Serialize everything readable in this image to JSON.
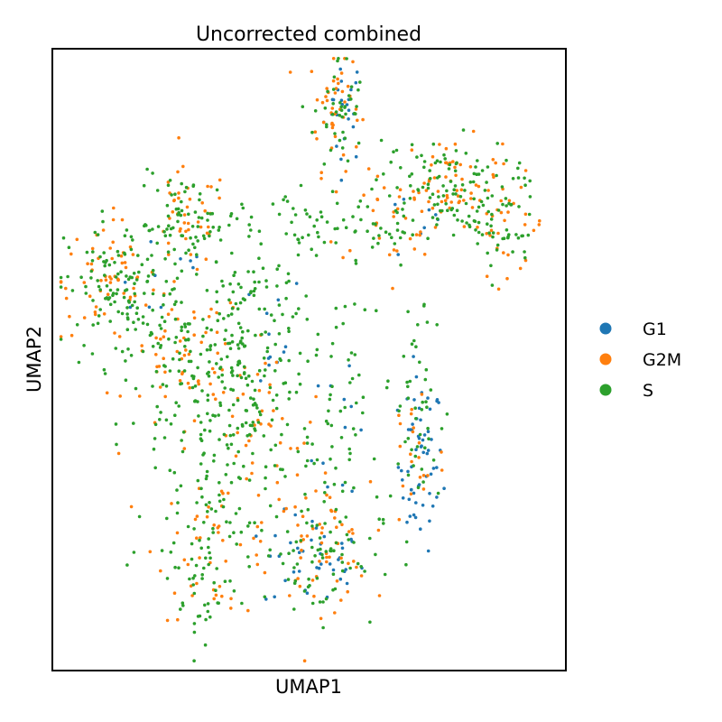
{
  "chart_data": {
    "type": "scatter",
    "title": "Uncorrected combined",
    "xlabel": "UMAP1",
    "ylabel": "UMAP2",
    "xlim": [
      0,
      100
    ],
    "ylim": [
      0,
      100
    ],
    "grid": false,
    "legend_position": "right",
    "series": [
      {
        "name": "G1",
        "color": "#1f77b4",
        "clusters": [
          {
            "cx": 57,
            "cy": 91,
            "sx": 2.0,
            "sy": 4.5,
            "n": 25
          },
          {
            "cx": 72,
            "cy": 33,
            "sx": 2.2,
            "sy": 7.0,
            "n": 60
          },
          {
            "cx": 51,
            "cy": 17,
            "sx": 5.0,
            "sy": 4.0,
            "n": 40
          },
          {
            "cx": 40,
            "cy": 55,
            "sx": 5.0,
            "sy": 5.0,
            "n": 12
          },
          {
            "cx": 20,
            "cy": 64,
            "sx": 6.0,
            "sy": 5.0,
            "n": 10
          },
          {
            "cx": 74,
            "cy": 72,
            "sx": 7.0,
            "sy": 4.0,
            "n": 8
          },
          {
            "cx": 57,
            "cy": 42,
            "sx": 3.0,
            "sy": 10.0,
            "n": 12
          }
        ]
      },
      {
        "name": "G2M",
        "color": "#ff7f0e",
        "clusters": [
          {
            "cx": 55,
            "cy": 91,
            "sx": 2.5,
            "sy": 5.0,
            "n": 45
          },
          {
            "cx": 78,
            "cy": 79,
            "sx": 5.0,
            "sy": 3.5,
            "n": 60
          },
          {
            "cx": 89,
            "cy": 72,
            "sx": 4.0,
            "sy": 4.0,
            "n": 30
          },
          {
            "cx": 10,
            "cy": 63,
            "sx": 5.0,
            "sy": 5.0,
            "n": 60
          },
          {
            "cx": 26,
            "cy": 73,
            "sx": 4.0,
            "sy": 4.0,
            "n": 40
          },
          {
            "cx": 26,
            "cy": 50,
            "sx": 6.0,
            "sy": 6.0,
            "n": 60
          },
          {
            "cx": 32,
            "cy": 20,
            "sx": 6.0,
            "sy": 6.0,
            "n": 50
          },
          {
            "cx": 52,
            "cy": 20,
            "sx": 5.0,
            "sy": 5.0,
            "n": 60
          },
          {
            "cx": 40,
            "cy": 38,
            "sx": 7.0,
            "sy": 7.0,
            "n": 40
          },
          {
            "cx": 71,
            "cy": 35,
            "sx": 3.0,
            "sy": 7.0,
            "n": 20
          },
          {
            "cx": 68,
            "cy": 73,
            "sx": 8.0,
            "sy": 4.0,
            "n": 30
          }
        ]
      },
      {
        "name": "S",
        "color": "#2ca02c",
        "clusters": [
          {
            "cx": 56,
            "cy": 90,
            "sx": 2.5,
            "sy": 5.0,
            "n": 40
          },
          {
            "cx": 76,
            "cy": 78,
            "sx": 7.0,
            "sy": 4.0,
            "n": 120
          },
          {
            "cx": 88,
            "cy": 71,
            "sx": 4.0,
            "sy": 4.0,
            "n": 40
          },
          {
            "cx": 13,
            "cy": 61,
            "sx": 5.5,
            "sy": 6.0,
            "n": 130
          },
          {
            "cx": 26,
            "cy": 72,
            "sx": 5.0,
            "sy": 4.0,
            "n": 70
          },
          {
            "cx": 26,
            "cy": 50,
            "sx": 5.0,
            "sy": 6.0,
            "n": 80
          },
          {
            "cx": 38,
            "cy": 56,
            "sx": 5.0,
            "sy": 6.0,
            "n": 80
          },
          {
            "cx": 38,
            "cy": 42,
            "sx": 7.0,
            "sy": 8.0,
            "n": 120
          },
          {
            "cx": 30,
            "cy": 26,
            "sx": 6.0,
            "sy": 8.0,
            "n": 100
          },
          {
            "cx": 52,
            "cy": 18,
            "sx": 6.0,
            "sy": 5.0,
            "n": 70
          },
          {
            "cx": 55,
            "cy": 38,
            "sx": 3.0,
            "sy": 10.0,
            "n": 50
          },
          {
            "cx": 71,
            "cy": 42,
            "sx": 3.0,
            "sy": 10.0,
            "n": 50
          },
          {
            "cx": 60,
            "cy": 71,
            "sx": 6.0,
            "sy": 3.0,
            "n": 40
          },
          {
            "cx": 28,
            "cy": 12,
            "sx": 2.0,
            "sy": 5.0,
            "n": 20
          },
          {
            "cx": 45,
            "cy": 72,
            "sx": 8.0,
            "sy": 3.0,
            "n": 40
          }
        ]
      }
    ]
  }
}
